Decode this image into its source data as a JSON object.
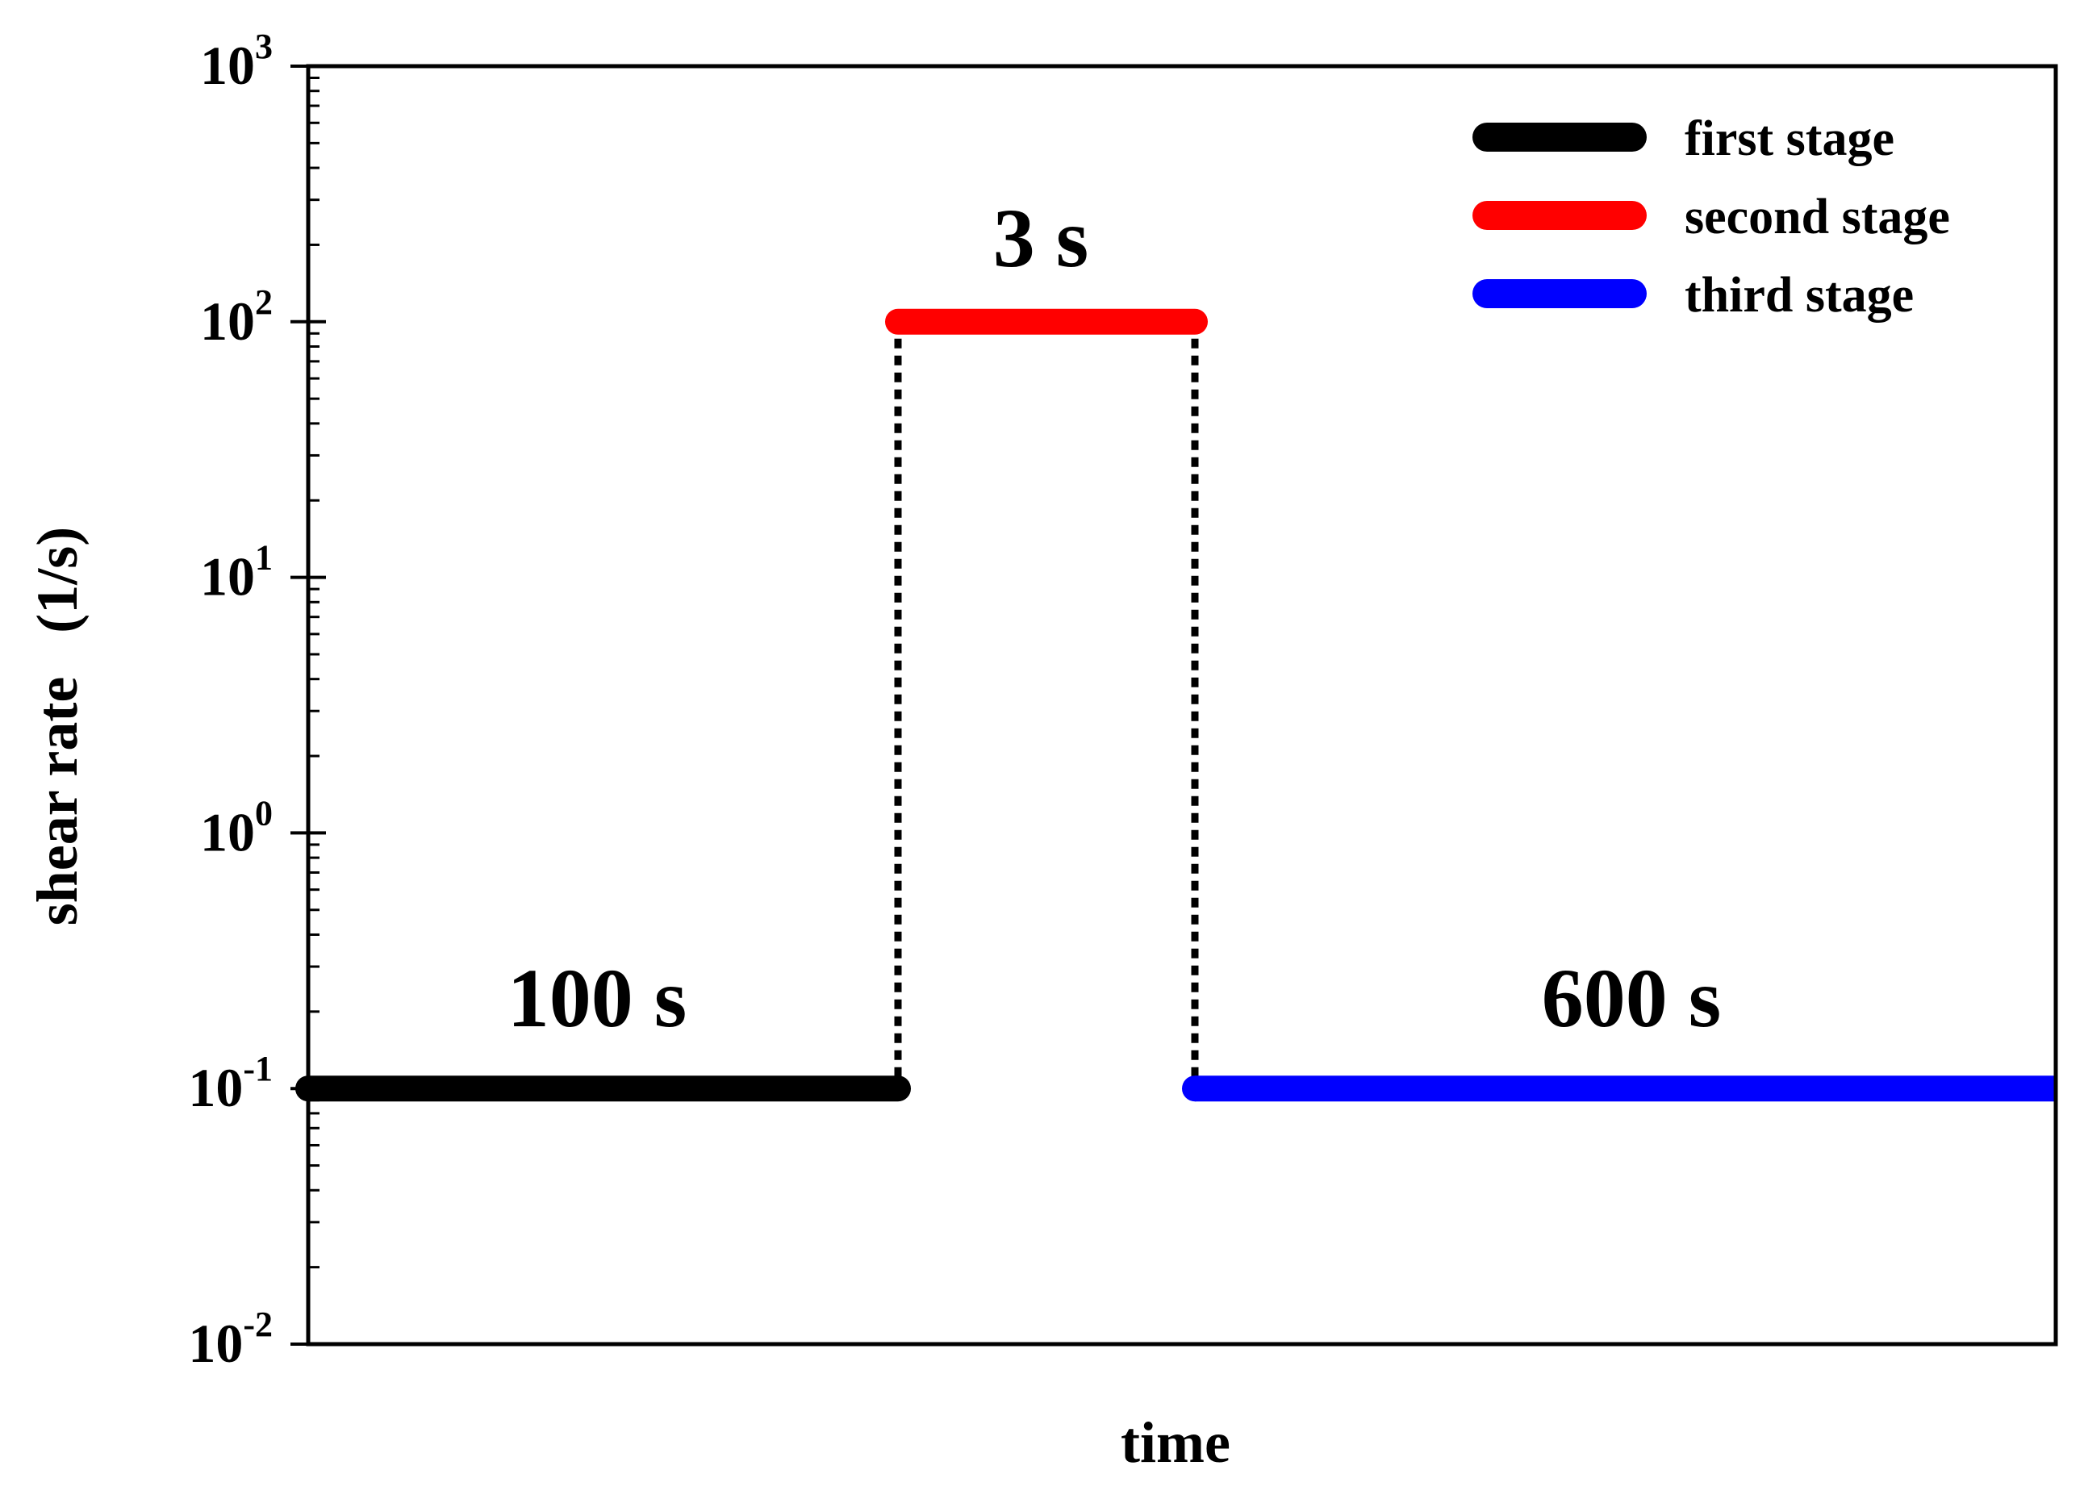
{
  "chart_data": {
    "type": "line",
    "title": "",
    "xlabel": "time",
    "ylabel": "shear rate   (1/s)",
    "yscale": "log",
    "ylim": [
      0.01,
      1000
    ],
    "y_ticks": [
      {
        "value": 0.01,
        "base": "10",
        "exp": "-2"
      },
      {
        "value": 0.1,
        "base": "10",
        "exp": "-1"
      },
      {
        "value": 1,
        "base": "10",
        "exp": "0"
      },
      {
        "value": 10,
        "base": "10",
        "exp": "1"
      },
      {
        "value": 100,
        "base": "10",
        "exp": "2"
      },
      {
        "value": 1000,
        "base": "10",
        "exp": "3"
      }
    ],
    "x_ticks_shown": false,
    "grid": false,
    "legend_position": "top-right",
    "series": [
      {
        "name": "first stage",
        "color": "#000000",
        "x": [
          0,
          100
        ],
        "y": [
          0.1,
          0.1
        ]
      },
      {
        "name": "second stage",
        "color": "#ff0000",
        "x": [
          100,
          103
        ],
        "y": [
          100,
          100
        ]
      },
      {
        "name": "third stage",
        "color": "#0000ff",
        "x": [
          103,
          703
        ],
        "y": [
          0.1,
          0.1
        ]
      }
    ],
    "connectors": [
      {
        "x": 100,
        "y": [
          0.1,
          100
        ],
        "style": "dotted",
        "color": "#000000"
      },
      {
        "x": 103,
        "y": [
          0.1,
          100
        ],
        "style": "dotted",
        "color": "#000000"
      }
    ],
    "annotations": [
      {
        "text": "100 s",
        "stage": "first stage"
      },
      {
        "text": "3 s",
        "stage": "second stage"
      },
      {
        "text": "600 s",
        "stage": "third stage"
      }
    ]
  }
}
